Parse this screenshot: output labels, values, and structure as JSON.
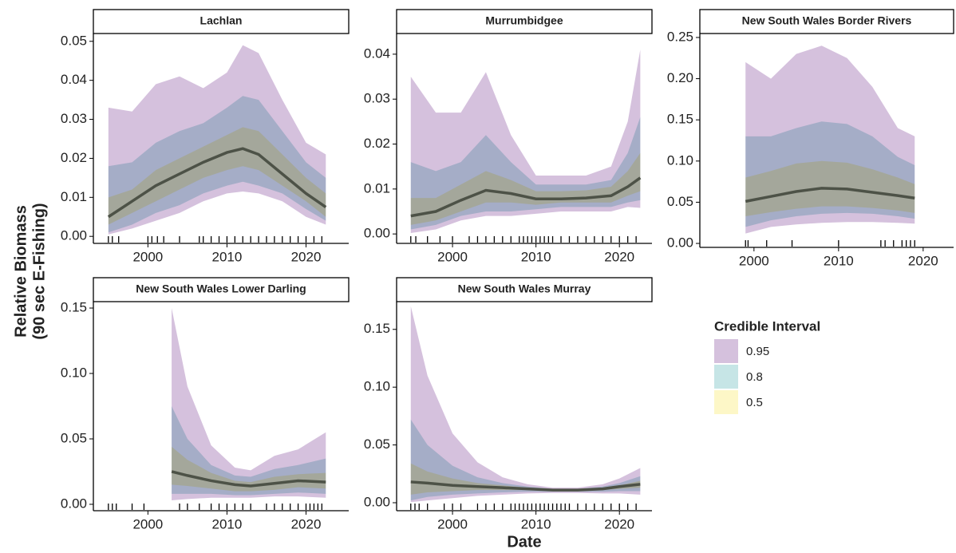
{
  "chart_data": [
    {
      "type": "band",
      "title": "Lachlan",
      "x": [
        1995,
        1998,
        2001,
        2004,
        2007,
        2010,
        2012,
        2014,
        2017,
        2020,
        2022.5
      ],
      "median": [
        0.005,
        0.009,
        0.013,
        0.016,
        0.019,
        0.0215,
        0.0225,
        0.021,
        0.016,
        0.011,
        0.0075
      ],
      "bands": [
        {
          "upper": [
            0.033,
            0.032,
            0.039,
            0.041,
            0.038,
            0.042,
            0.049,
            0.047,
            0.035,
            0.024,
            0.021
          ],
          "lower": [
            0.0005,
            0.002,
            0.004,
            0.006,
            0.009,
            0.011,
            0.0115,
            0.011,
            0.009,
            0.005,
            0.003
          ]
        },
        {
          "upper": [
            0.018,
            0.019,
            0.024,
            0.027,
            0.029,
            0.033,
            0.036,
            0.035,
            0.027,
            0.019,
            0.015
          ],
          "lower": [
            0.001,
            0.003,
            0.006,
            0.008,
            0.011,
            0.013,
            0.014,
            0.013,
            0.011,
            0.007,
            0.004
          ]
        },
        {
          "upper": [
            0.01,
            0.012,
            0.017,
            0.02,
            0.023,
            0.026,
            0.028,
            0.027,
            0.021,
            0.015,
            0.011
          ],
          "lower": [
            0.003,
            0.006,
            0.009,
            0.012,
            0.015,
            0.017,
            0.018,
            0.017,
            0.013,
            0.009,
            0.005
          ]
        }
      ],
      "rug": [
        1995,
        1995.5,
        1996.3,
        2000,
        2000.5,
        2001.2,
        2002,
        2004,
        2006.5,
        2007,
        2008,
        2009,
        2010,
        2011,
        2012,
        2013,
        2014,
        2015,
        2016,
        2017,
        2018,
        2019,
        2020,
        2021,
        2022
      ],
      "xlim": [
        1993.1,
        2025.4
      ],
      "xticks": [
        2000,
        2010,
        2020
      ],
      "ylim": [
        -0.0018,
        0.052
      ],
      "yticks": [
        {
          "value": 0,
          "label": "0.00"
        },
        0.01,
        0.02,
        0.03,
        0.04,
        0.05
      ]
    },
    {
      "type": "band",
      "title": "Murrumbidgee",
      "x": [
        1995,
        1998,
        2001,
        2004,
        2007,
        2010,
        2013,
        2016,
        2019,
        2021,
        2022.5
      ],
      "median": [
        0.004,
        0.005,
        0.0075,
        0.0097,
        0.009,
        0.0078,
        0.0078,
        0.008,
        0.0085,
        0.0105,
        0.0125
      ],
      "bands": [
        {
          "upper": [
            0.035,
            0.027,
            0.027,
            0.036,
            0.022,
            0.013,
            0.013,
            0.013,
            0.015,
            0.025,
            0.041
          ],
          "lower": [
            0.0002,
            0.001,
            0.003,
            0.004,
            0.004,
            0.0045,
            0.005,
            0.005,
            0.005,
            0.006,
            0.0058
          ]
        },
        {
          "upper": [
            0.016,
            0.014,
            0.016,
            0.022,
            0.016,
            0.011,
            0.011,
            0.011,
            0.012,
            0.018,
            0.026
          ],
          "lower": [
            0.001,
            0.002,
            0.004,
            0.005,
            0.005,
            0.0055,
            0.006,
            0.006,
            0.006,
            0.007,
            0.0075
          ]
        },
        {
          "upper": [
            0.008,
            0.008,
            0.011,
            0.014,
            0.012,
            0.0095,
            0.0095,
            0.0097,
            0.0105,
            0.014,
            0.018
          ],
          "lower": [
            0.002,
            0.003,
            0.005,
            0.007,
            0.007,
            0.0065,
            0.007,
            0.007,
            0.007,
            0.0085,
            0.0095
          ]
        }
      ],
      "rug": [
        1995,
        1995.6,
        1997,
        1998.5,
        2000,
        2002,
        2003,
        2004,
        2005,
        2006,
        2007,
        2008,
        2008.5,
        2009,
        2009.5,
        2010,
        2010.5,
        2011,
        2011.5,
        2012,
        2013,
        2014,
        2015,
        2016,
        2017,
        2018,
        2019,
        2020,
        2021,
        2022
      ],
      "xlim": [
        1993.3,
        2023.9
      ],
      "xticks": [
        2000,
        2010,
        2020
      ],
      "ylim": [
        -0.0021,
        0.0446
      ],
      "yticks": [
        {
          "value": 0,
          "label": "0.00"
        },
        0.01,
        0.02,
        0.03,
        0.04
      ]
    },
    {
      "type": "band",
      "title": "New South Wales Border Rivers",
      "x": [
        1999,
        2002,
        2005,
        2008,
        2011,
        2014,
        2017,
        2019
      ],
      "median": [
        0.051,
        0.057,
        0.063,
        0.067,
        0.066,
        0.062,
        0.058,
        0.055
      ],
      "bands": [
        {
          "upper": [
            0.22,
            0.2,
            0.23,
            0.24,
            0.225,
            0.19,
            0.14,
            0.13
          ],
          "lower": [
            0.012,
            0.02,
            0.023,
            0.025,
            0.026,
            0.026,
            0.025,
            0.024
          ]
        },
        {
          "upper": [
            0.13,
            0.13,
            0.14,
            0.148,
            0.145,
            0.13,
            0.105,
            0.095
          ],
          "lower": [
            0.02,
            0.028,
            0.033,
            0.036,
            0.037,
            0.036,
            0.033,
            0.03
          ]
        },
        {
          "upper": [
            0.08,
            0.088,
            0.097,
            0.1,
            0.098,
            0.09,
            0.08,
            0.072
          ],
          "lower": [
            0.033,
            0.038,
            0.042,
            0.045,
            0.045,
            0.043,
            0.04,
            0.037
          ]
        }
      ],
      "rug": [
        1999,
        1999.3,
        2001.5,
        2004.5,
        2010,
        2015,
        2015.5,
        2016.5,
        2017.5,
        2018,
        2018.5,
        2019
      ],
      "xlim": [
        1993.6,
        2023.6
      ],
      "xticks": [
        2000,
        2010,
        2020
      ],
      "ylim": [
        -0.0048,
        0.2548
      ],
      "yticks": [
        {
          "value": 0,
          "label": "0.00"
        },
        0.05,
        {
          "value": 0.1,
          "label": "0.10"
        },
        0.15,
        {
          "value": 0.2,
          "label": "0.20"
        },
        0.25
      ]
    },
    {
      "type": "band",
      "title": "New South Wales Lower Darling",
      "x": [
        2003,
        2005,
        2008,
        2011,
        2013,
        2016,
        2019,
        2022.5
      ],
      "median": [
        0.025,
        0.022,
        0.018,
        0.015,
        0.014,
        0.016,
        0.018,
        0.017
      ],
      "bands": [
        {
          "upper": [
            0.15,
            0.09,
            0.045,
            0.028,
            0.026,
            0.037,
            0.042,
            0.055
          ],
          "lower": [
            0.003,
            0.004,
            0.005,
            0.005,
            0.005,
            0.006,
            0.006,
            0.005
          ]
        },
        {
          "upper": [
            0.075,
            0.05,
            0.03,
            0.022,
            0.021,
            0.027,
            0.03,
            0.035
          ],
          "lower": [
            0.008,
            0.008,
            0.008,
            0.007,
            0.007,
            0.008,
            0.009,
            0.008
          ]
        },
        {
          "upper": [
            0.044,
            0.034,
            0.024,
            0.018,
            0.017,
            0.021,
            0.023,
            0.024
          ],
          "lower": [
            0.015,
            0.014,
            0.012,
            0.01,
            0.01,
            0.011,
            0.013,
            0.012
          ]
        }
      ],
      "rug": [
        1995,
        1995.5,
        1996,
        1998,
        1999.5,
        2004,
        2005,
        2006.5,
        2008,
        2009,
        2010,
        2011,
        2012,
        2013,
        2015,
        2016,
        2017,
        2018,
        2019,
        2020,
        2020.5,
        2021,
        2021.5,
        2022
      ],
      "xlim": [
        1993.1,
        2025.4
      ],
      "xticks": [
        2000,
        2010,
        2020
      ],
      "ylim": [
        -0.0049,
        0.1549
      ],
      "yticks": [
        {
          "value": 0,
          "label": "0.00"
        },
        0.05,
        {
          "value": 0.1,
          "label": "0.10"
        },
        0.15
      ]
    },
    {
      "type": "band",
      "title": "New South Wales Murray",
      "x": [
        1995,
        1997,
        2000,
        2003,
        2006,
        2009,
        2012,
        2015,
        2018,
        2020,
        2022.5
      ],
      "median": [
        0.018,
        0.017,
        0.015,
        0.014,
        0.013,
        0.012,
        0.011,
        0.011,
        0.012,
        0.014,
        0.016
      ],
      "bands": [
        {
          "upper": [
            0.17,
            0.11,
            0.06,
            0.035,
            0.022,
            0.016,
            0.013,
            0.013,
            0.016,
            0.021,
            0.03
          ],
          "lower": [
            0.0005,
            0.002,
            0.004,
            0.006,
            0.007,
            0.008,
            0.0085,
            0.0085,
            0.008,
            0.008,
            0.007
          ]
        },
        {
          "upper": [
            0.072,
            0.05,
            0.032,
            0.022,
            0.017,
            0.014,
            0.012,
            0.012,
            0.014,
            0.017,
            0.023
          ],
          "lower": [
            0.002,
            0.005,
            0.007,
            0.008,
            0.009,
            0.0095,
            0.0095,
            0.0095,
            0.0095,
            0.01,
            0.01
          ]
        },
        {
          "upper": [
            0.034,
            0.027,
            0.021,
            0.017,
            0.015,
            0.013,
            0.012,
            0.012,
            0.013,
            0.015,
            0.019
          ],
          "lower": [
            0.007,
            0.009,
            0.01,
            0.011,
            0.011,
            0.011,
            0.0105,
            0.0105,
            0.011,
            0.012,
            0.013
          ]
        }
      ],
      "rug": [
        1995,
        1995.5,
        1996,
        1997,
        1999,
        2000,
        2001,
        2003,
        2004,
        2005,
        2006,
        2007,
        2007.5,
        2008,
        2008.5,
        2009,
        2009.5,
        2010,
        2010.5,
        2011,
        2011.5,
        2012,
        2012.5,
        2013,
        2013.5,
        2014,
        2015,
        2016,
        2017,
        2018,
        2019,
        2020,
        2021,
        2022
      ],
      "xlim": [
        1993.3,
        2023.9
      ],
      "xticks": [
        2000,
        2010,
        2020
      ],
      "ylim": [
        -0.0069,
        0.174
      ],
      "yticks": [
        {
          "value": 0,
          "label": "0.00"
        },
        0.05,
        {
          "value": 0.1,
          "label": "0.10"
        },
        0.15
      ]
    }
  ],
  "y_label": [
    "Relative Biomass",
    "(90 sec E-Fishing)"
  ],
  "x_label": "Date",
  "legend": {
    "title": "Credible Interval",
    "entries": [
      {
        "name": "0.95",
        "color": "#d5c1dd"
      },
      {
        "name": "0.8",
        "color": "#c6e5e6"
      },
      {
        "name": "0.5",
        "color": "#fdf7c7"
      }
    ]
  },
  "median_color": "#4d5247"
}
